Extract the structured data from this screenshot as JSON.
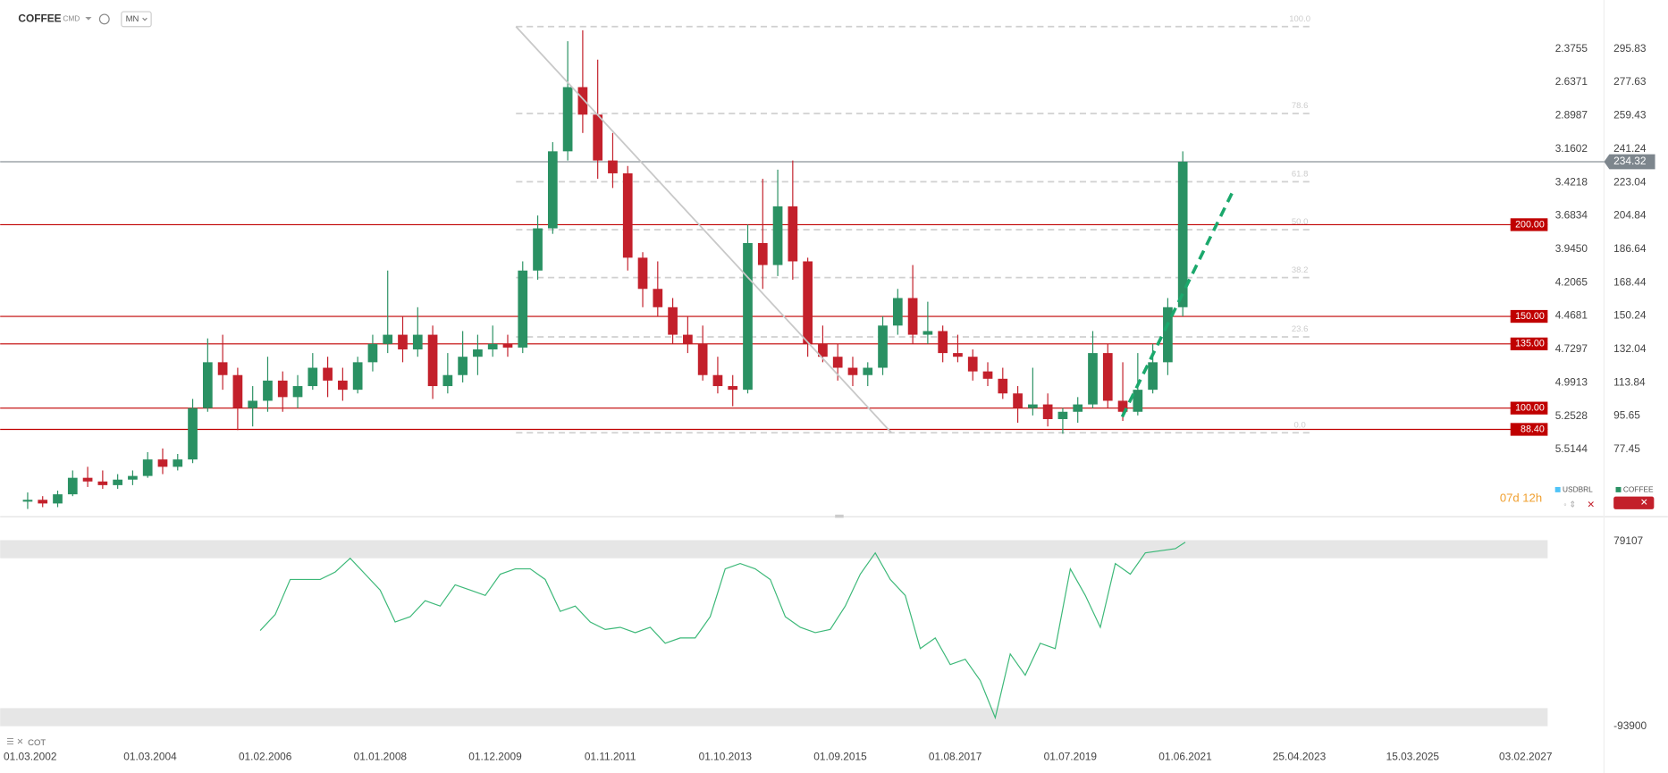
{
  "chart_data": [
    {
      "type": "candlestick",
      "title": "COFFEE",
      "source": "CMD",
      "interval": "MN",
      "countdown": "07d 12h",
      "x": [
        "01.01.2002",
        "01.04.2002",
        "01.07.2002",
        "01.10.2002",
        "01.01.2003",
        "01.04.2003",
        "01.07.2003",
        "01.10.2003",
        "01.01.2004",
        "01.04.2004",
        "01.07.2004",
        "01.10.2004",
        "01.01.2005",
        "01.04.2005",
        "01.07.2005",
        "01.10.2005",
        "01.01.2006",
        "01.04.2006",
        "01.07.2006",
        "01.10.2006",
        "01.01.2007",
        "01.04.2007",
        "01.07.2007",
        "01.10.2007",
        "01.01.2008",
        "01.04.2008",
        "01.07.2008",
        "01.10.2008",
        "01.01.2009",
        "01.04.2009",
        "01.07.2009",
        "01.10.2009",
        "01.01.2010",
        "01.04.2010",
        "01.07.2010",
        "01.10.2010",
        "01.01.2011",
        "01.04.2011",
        "01.07.2011",
        "01.10.2011",
        "01.01.2012",
        "01.04.2012",
        "01.07.2012",
        "01.10.2012",
        "01.01.2013",
        "01.04.2013",
        "01.07.2013",
        "01.10.2013",
        "01.01.2014",
        "01.04.2014",
        "01.07.2014",
        "01.10.2014",
        "01.01.2015",
        "01.04.2015",
        "01.07.2015",
        "01.10.2015",
        "01.01.2016",
        "01.04.2016",
        "01.07.2016",
        "01.10.2016",
        "01.01.2017",
        "01.04.2017",
        "01.07.2017",
        "01.10.2017",
        "01.01.2018",
        "01.04.2018",
        "01.07.2018",
        "01.10.2018",
        "01.01.2019",
        "01.04.2019",
        "01.07.2019",
        "01.10.2019",
        "01.01.2020",
        "01.04.2020",
        "01.07.2020",
        "01.10.2020",
        "01.01.2021",
        "01.04.2021"
      ],
      "open": [
        49,
        50,
        48,
        53,
        62,
        60,
        58,
        61,
        63,
        72,
        68,
        72,
        100,
        125,
        118,
        100,
        104,
        115,
        106,
        112,
        122,
        115,
        110,
        125,
        135,
        140,
        132,
        140,
        112,
        118,
        128,
        132,
        135,
        133,
        175,
        198,
        240,
        275,
        260,
        235,
        228,
        182,
        165,
        155,
        140,
        135,
        118,
        112,
        110,
        190,
        178,
        210,
        180,
        135,
        128,
        122,
        118,
        122,
        145,
        160,
        140,
        142,
        130,
        128,
        120,
        116,
        108,
        100,
        102,
        94,
        98,
        102,
        130,
        104,
        98,
        110,
        125,
        155
      ],
      "high": [
        54,
        52,
        55,
        66,
        68,
        66,
        64,
        66,
        76,
        78,
        75,
        105,
        138,
        140,
        122,
        112,
        128,
        120,
        118,
        130,
        128,
        122,
        128,
        140,
        175,
        150,
        155,
        145,
        130,
        142,
        140,
        145,
        140,
        180,
        205,
        245,
        300,
        306,
        290,
        250,
        232,
        185,
        180,
        160,
        150,
        145,
        128,
        118,
        200,
        225,
        230,
        235,
        182,
        145,
        135,
        128,
        125,
        150,
        165,
        178,
        158,
        145,
        140,
        132,
        125,
        122,
        112,
        122,
        108,
        100,
        106,
        142,
        135,
        125,
        130,
        135,
        160,
        240
      ],
      "low": [
        45,
        46,
        46,
        52,
        57,
        56,
        56,
        58,
        62,
        64,
        66,
        70,
        98,
        110,
        88,
        90,
        98,
        98,
        100,
        110,
        106,
        104,
        108,
        120,
        130,
        125,
        128,
        105,
        108,
        114,
        118,
        128,
        128,
        130,
        170,
        195,
        235,
        250,
        225,
        220,
        175,
        155,
        150,
        135,
        130,
        115,
        108,
        101,
        108,
        165,
        172,
        170,
        128,
        125,
        115,
        112,
        112,
        118,
        140,
        135,
        135,
        125,
        125,
        115,
        112,
        105,
        92,
        96,
        90,
        86,
        92,
        100,
        100,
        93,
        96,
        108,
        118,
        150
      ],
      "close": [
        50,
        48,
        53,
        62,
        60,
        58,
        61,
        63,
        72,
        68,
        72,
        100,
        125,
        118,
        100,
        104,
        115,
        106,
        112,
        122,
        115,
        110,
        125,
        135,
        140,
        132,
        140,
        112,
        118,
        128,
        132,
        135,
        133,
        175,
        198,
        240,
        275,
        260,
        235,
        228,
        182,
        165,
        155,
        140,
        135,
        118,
        112,
        110,
        190,
        178,
        210,
        180,
        135,
        128,
        122,
        118,
        122,
        145,
        160,
        140,
        142,
        130,
        128,
        120,
        116,
        108,
        100,
        102,
        94,
        98,
        102,
        130,
        104,
        98,
        110,
        125,
        155,
        234.32
      ],
      "up_color": "#2a9163",
      "down_color": "#c3202b",
      "xlim": [
        "01.09.2001",
        "15.06.2027"
      ],
      "xticks": [
        "01.03.2002",
        "01.03.2004",
        "01.02.2006",
        "01.01.2008",
        "01.12.2009",
        "01.11.2011",
        "01.10.2013",
        "01.09.2015",
        "01.08.2017",
        "01.07.2019",
        "01.06.2021",
        "25.04.2023",
        "15.03.2025",
        "03.02.2027"
      ],
      "ylim": [
        45.4,
        322.5
      ],
      "yticks": [
        295.83,
        277.63,
        259.43,
        241.24,
        223.04,
        204.84,
        186.64,
        168.44,
        150.24,
        132.04,
        113.84,
        95.65,
        77.45
      ],
      "y2lim": [
        5.9745,
        1.9923
      ],
      "y2ticks": [
        2.3755,
        2.6371,
        2.8987,
        3.1602,
        3.4218,
        3.6834,
        {
          "value": 3.945,
          "label": "3.9450"
        },
        4.2065,
        4.4681,
        4.7297,
        4.9913,
        5.2528,
        5.5144
      ],
      "levels": [
        {
          "value": 200,
          "label": "200.00"
        },
        {
          "value": 150,
          "label": "150.00"
        },
        {
          "value": 135,
          "label": "135.00"
        },
        {
          "value": 100,
          "label": "100.00"
        },
        {
          "value": 88.4,
          "label": "88.40"
        }
      ],
      "level_color": "#c00000",
      "fib": {
        "from": 86.55,
        "to": 308.0,
        "levels": [
          {
            "value": 100,
            "label": "100.0"
          },
          {
            "value": 78.6,
            "label": "78.6"
          },
          {
            "value": 61.8,
            "label": "61.8"
          },
          {
            "value": 50,
            "label": "50.0"
          },
          {
            "value": 38.2,
            "label": "38.2"
          },
          {
            "value": 23.6,
            "label": "23.6"
          },
          {
            "value": 0,
            "label": "0.0"
          }
        ]
      },
      "legend": [
        {
          "name": "USDBRL",
          "color": "#4fc3f7"
        },
        {
          "name": "COFFEE",
          "color": "#2a9163"
        }
      ]
    },
    {
      "type": "line",
      "title": "COT",
      "color": "#3cb878",
      "x": [
        "01.01.2006",
        "01.04.2006",
        "01.07.2006",
        "01.10.2006",
        "01.01.2007",
        "01.04.2007",
        "01.07.2007",
        "01.10.2007",
        "01.01.2008",
        "01.04.2008",
        "01.07.2008",
        "01.10.2008",
        "01.01.2009",
        "01.04.2009",
        "01.07.2009",
        "01.10.2009",
        "01.01.2010",
        "01.04.2010",
        "01.07.2010",
        "01.10.2010",
        "01.01.2011",
        "01.04.2011",
        "01.07.2011",
        "01.10.2011",
        "01.01.2012",
        "01.04.2012",
        "01.07.2012",
        "01.10.2012",
        "01.01.2013",
        "01.04.2013",
        "01.07.2013",
        "01.10.2013",
        "01.01.2014",
        "01.04.2014",
        "01.07.2014",
        "01.10.2014",
        "01.01.2015",
        "01.04.2015",
        "01.07.2015",
        "01.10.2015",
        "01.01.2016",
        "01.04.2016",
        "01.07.2016",
        "01.10.2016",
        "01.01.2017",
        "01.04.2017",
        "01.07.2017",
        "01.10.2017",
        "01.01.2018",
        "01.04.2018",
        "01.07.2018",
        "01.10.2018",
        "01.01.2019",
        "01.04.2019",
        "01.07.2019",
        "01.10.2019",
        "01.01.2020",
        "01.04.2020",
        "01.07.2020",
        "01.10.2020",
        "01.01.2021",
        "01.04.2021",
        "01.06.2021"
      ],
      "values": [
        -4400,
        10500,
        43300,
        43300,
        43300,
        50300,
        63200,
        48300,
        33400,
        3500,
        8500,
        23400,
        18500,
        38300,
        33400,
        28400,
        48300,
        53300,
        53300,
        43300,
        13500,
        18500,
        3500,
        -3400,
        -1400,
        -6400,
        -1400,
        -16300,
        -11400,
        -11400,
        8500,
        53300,
        58200,
        53300,
        43300,
        8500,
        -1400,
        -6400,
        -3400,
        18500,
        48300,
        68200,
        43300,
        28400,
        -21300,
        -11400,
        -36200,
        -31300,
        -51100,
        -85900,
        -26300,
        -46200,
        -16300,
        -21300,
        53300,
        28400,
        -1400,
        58200,
        48300,
        68200,
        70200,
        72100,
        78100
      ],
      "ylim": [
        -93900,
        79107
      ],
      "yticks": [
        79107,
        -93900
      ]
    }
  ]
}
